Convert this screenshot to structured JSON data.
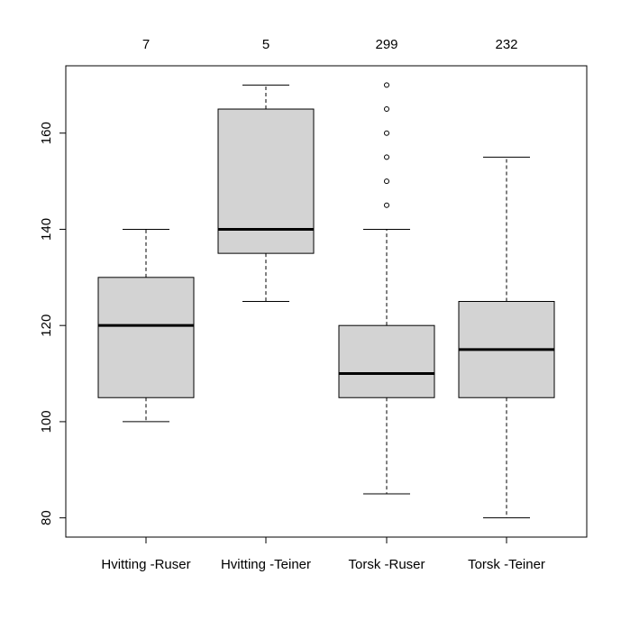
{
  "chart_data": {
    "type": "boxplot",
    "categories": [
      "Hvitting -Ruser",
      "Hvitting -Teiner",
      "Torsk -Ruser",
      "Torsk -Teiner"
    ],
    "counts": [
      "7",
      "5",
      "299",
      "232"
    ],
    "boxes": [
      {
        "whisker_low": 100,
        "q1": 105,
        "median": 120,
        "q3": 130,
        "whisker_high": 140,
        "outliers": []
      },
      {
        "whisker_low": 125,
        "q1": 135,
        "median": 140,
        "q3": 165,
        "whisker_high": 170,
        "outliers": []
      },
      {
        "whisker_low": 85,
        "q1": 105,
        "median": 110,
        "q3": 120,
        "whisker_high": 140,
        "outliers": [
          145,
          150,
          155,
          160,
          165,
          170
        ]
      },
      {
        "whisker_low": 80,
        "q1": 105,
        "median": 115,
        "q3": 125,
        "whisker_high": 155,
        "outliers": []
      }
    ],
    "y_ticks": [
      80,
      100,
      120,
      140,
      160
    ],
    "ylim": [
      76,
      174
    ],
    "box_fill": "#d3d3d3",
    "grid": false,
    "title": "",
    "xlabel": "",
    "ylabel": ""
  }
}
